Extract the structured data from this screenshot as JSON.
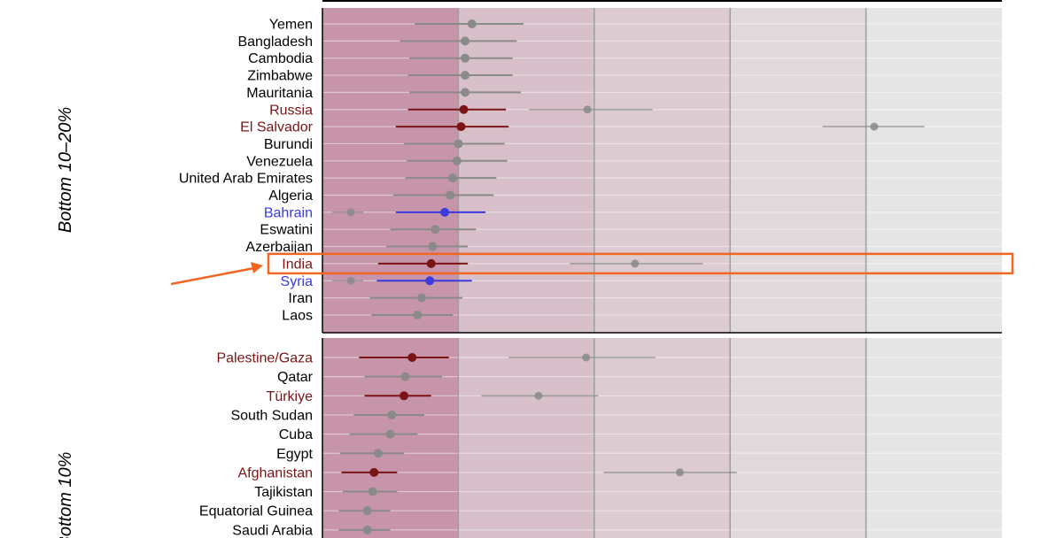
{
  "chart_data": {
    "type": "scatter",
    "subtype": "dot-and-interval (forest) plot, faceted by group",
    "xlim": [
      0,
      5
    ],
    "band_colors": [
      "#c795a9",
      "#d8c0ca",
      "#dccbd1",
      "#e1d8db",
      "#e6e5e5"
    ],
    "colors": {
      "neutral": "#8a8a8a",
      "dark_red": "#7b1414",
      "blue": "#3b3bdb",
      "highlight": "#f26522",
      "gridline": "#9e9e9e"
    },
    "facets": [
      {
        "label": "Bottom 10–20%",
        "rows": [
          {
            "country": "Yemen",
            "group": "neutral",
            "est": 1.1,
            "lo": 0.68,
            "hi": 1.48
          },
          {
            "country": "Bangladesh",
            "group": "neutral",
            "est": 1.05,
            "lo": 0.57,
            "hi": 1.43
          },
          {
            "country": "Cambodia",
            "group": "neutral",
            "est": 1.05,
            "lo": 0.64,
            "hi": 1.4
          },
          {
            "country": "Zimbabwe",
            "group": "neutral",
            "est": 1.05,
            "lo": 0.63,
            "hi": 1.4
          },
          {
            "country": "Mauritania",
            "group": "neutral",
            "est": 1.05,
            "lo": 0.64,
            "hi": 1.46
          },
          {
            "country": "Russia",
            "group": "dark_red",
            "est": 1.04,
            "lo": 0.63,
            "hi": 1.35,
            "secondary": {
              "est": 1.95,
              "lo": 1.52,
              "hi": 2.43
            }
          },
          {
            "country": "El Salvador",
            "group": "dark_red",
            "est": 1.02,
            "lo": 0.54,
            "hi": 1.37,
            "secondary": {
              "est": 4.06,
              "lo": 3.68,
              "hi": 4.43
            }
          },
          {
            "country": "Burundi",
            "group": "neutral",
            "est": 1.0,
            "lo": 0.6,
            "hi": 1.34
          },
          {
            "country": "Venezuela",
            "group": "neutral",
            "est": 0.99,
            "lo": 0.62,
            "hi": 1.36
          },
          {
            "country": "United Arab Emirates",
            "group": "neutral",
            "est": 0.96,
            "lo": 0.61,
            "hi": 1.28
          },
          {
            "country": "Algeria",
            "group": "neutral",
            "est": 0.94,
            "lo": 0.52,
            "hi": 1.26
          },
          {
            "country": "Bahrain",
            "group": "blue",
            "est": 0.9,
            "lo": 0.54,
            "hi": 1.2,
            "secondary": {
              "est": 0.21,
              "lo": 0.07,
              "hi": 0.3
            }
          },
          {
            "country": "Eswatini",
            "group": "neutral",
            "est": 0.83,
            "lo": 0.5,
            "hi": 1.13
          },
          {
            "country": "Azerbaijan",
            "group": "neutral",
            "est": 0.81,
            "lo": 0.47,
            "hi": 1.07
          },
          {
            "country": "India",
            "group": "dark_red",
            "est": 0.8,
            "lo": 0.41,
            "hi": 1.07,
            "highlight": true,
            "secondary": {
              "est": 2.3,
              "lo": 1.82,
              "hi": 2.8
            }
          },
          {
            "country": "Syria",
            "group": "blue",
            "est": 0.79,
            "lo": 0.4,
            "hi": 1.1,
            "secondary": {
              "est": 0.21,
              "lo": 0.07,
              "hi": 0.3
            }
          },
          {
            "country": "Iran",
            "group": "neutral",
            "est": 0.73,
            "lo": 0.35,
            "hi": 1.03
          },
          {
            "country": "Laos",
            "group": "neutral",
            "est": 0.7,
            "lo": 0.36,
            "hi": 0.96
          }
        ]
      },
      {
        "label": "Bottom 10%",
        "rows": [
          {
            "country": "Palestine/Gaza",
            "group": "dark_red",
            "est": 0.66,
            "lo": 0.27,
            "hi": 0.93,
            "secondary": {
              "est": 1.94,
              "lo": 1.37,
              "hi": 2.45
            }
          },
          {
            "country": "Qatar",
            "group": "neutral",
            "est": 0.61,
            "lo": 0.31,
            "hi": 0.88
          },
          {
            "country": "Türkiye",
            "group": "dark_red",
            "est": 0.6,
            "lo": 0.31,
            "hi": 0.8,
            "secondary": {
              "est": 1.59,
              "lo": 1.17,
              "hi": 2.03
            }
          },
          {
            "country": "South Sudan",
            "group": "neutral",
            "est": 0.51,
            "lo": 0.23,
            "hi": 0.75
          },
          {
            "country": "Cuba",
            "group": "neutral",
            "est": 0.5,
            "lo": 0.2,
            "hi": 0.7
          },
          {
            "country": "Egypt",
            "group": "neutral",
            "est": 0.41,
            "lo": 0.13,
            "hi": 0.6
          },
          {
            "country": "Afghanistan",
            "group": "dark_red",
            "est": 0.38,
            "lo": 0.14,
            "hi": 0.55,
            "secondary": {
              "est": 2.63,
              "lo": 2.07,
              "hi": 3.05
            }
          },
          {
            "country": "Tajikistan",
            "group": "neutral",
            "est": 0.37,
            "lo": 0.15,
            "hi": 0.55
          },
          {
            "country": "Equatorial Guinea",
            "group": "neutral",
            "est": 0.33,
            "lo": 0.12,
            "hi": 0.5
          },
          {
            "country": "Saudi Arabia",
            "group": "neutral",
            "est": 0.33,
            "lo": 0.12,
            "hi": 0.5
          }
        ]
      }
    ]
  }
}
